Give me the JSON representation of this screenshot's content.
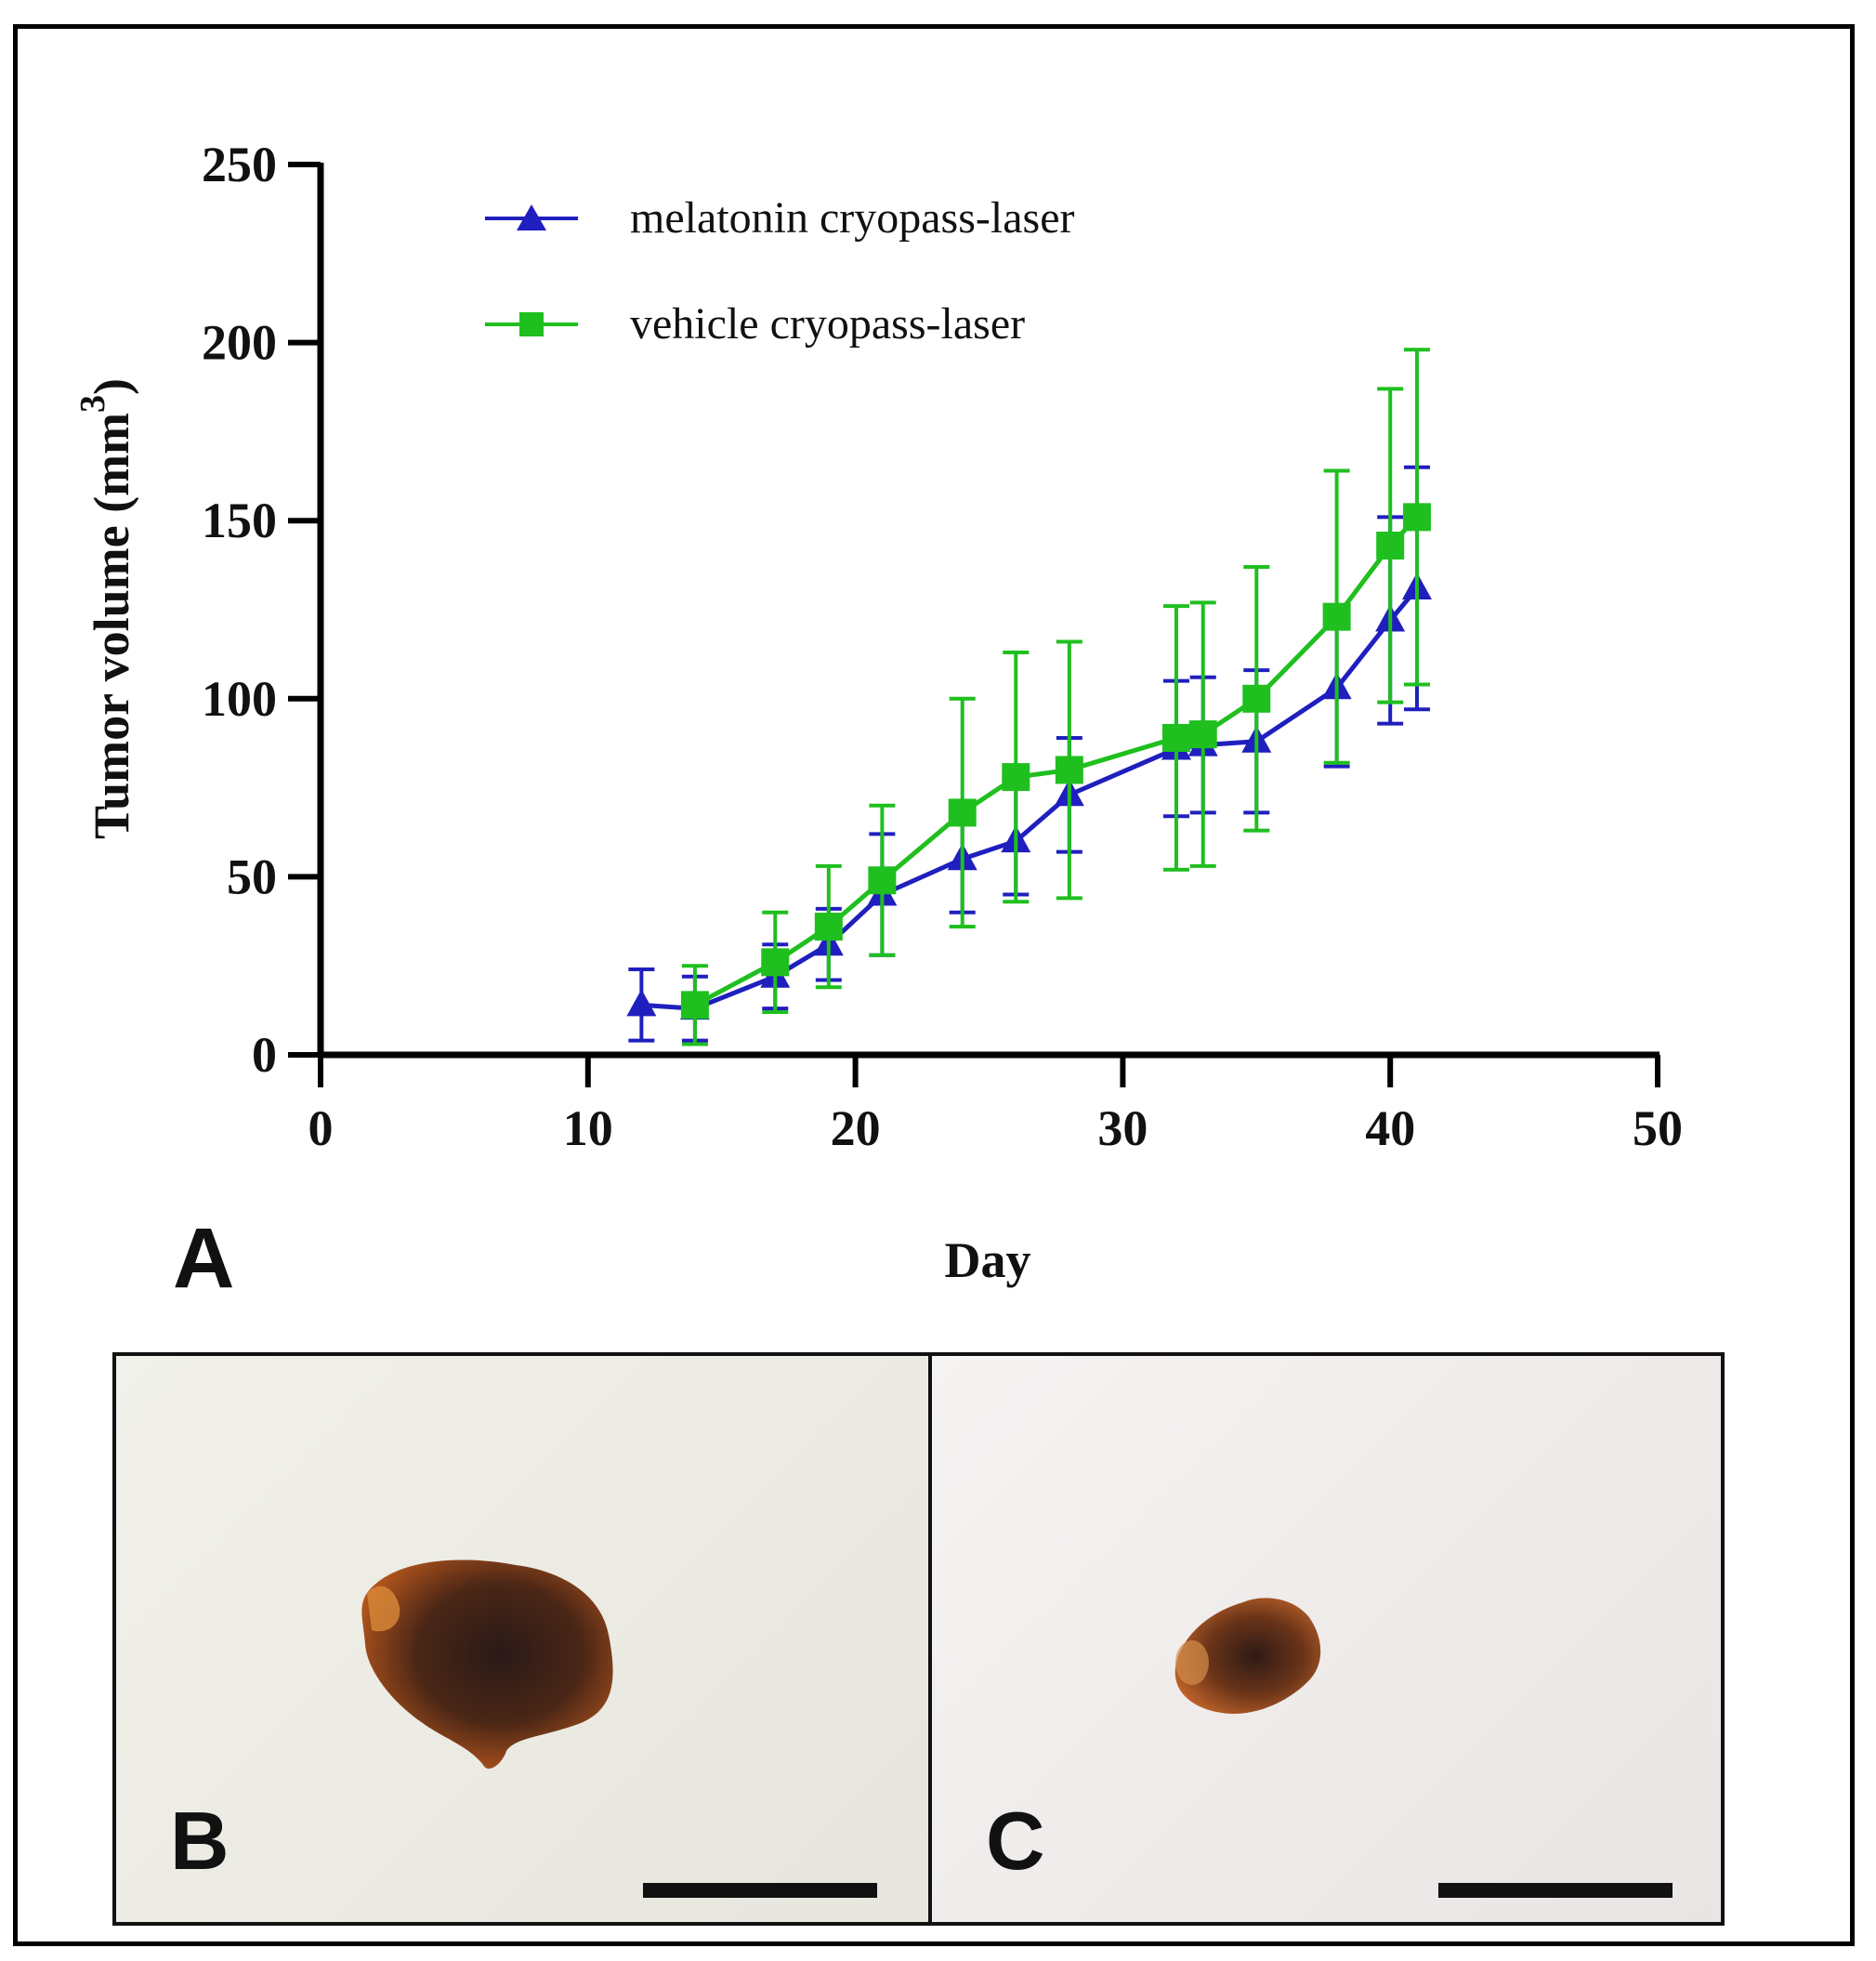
{
  "chart_data": {
    "type": "line",
    "xlabel": "Day",
    "ylabel_main": "Tumor volume (mm",
    "ylabel_sup": "3",
    "ylabel_close": ")",
    "xlim": [
      0,
      50
    ],
    "ylim": [
      0,
      250
    ],
    "xticks": [
      0,
      10,
      20,
      30,
      40,
      50
    ],
    "yticks": [
      0,
      50,
      100,
      150,
      200,
      250
    ],
    "legend_position": "top-left",
    "series": [
      {
        "name": "melatonin cryopass-laser",
        "color": "#1f1fbf",
        "marker": "triangle",
        "x": [
          12,
          14,
          17,
          19,
          21,
          24,
          26,
          28,
          32,
          33,
          35,
          38,
          40,
          41
        ],
        "y": [
          14,
          13,
          22,
          31,
          45,
          55,
          60,
          73,
          86,
          87,
          88,
          103,
          122,
          131
        ],
        "err": [
          10,
          9,
          9,
          10,
          17,
          15,
          15,
          16,
          19,
          19,
          20,
          22,
          29,
          34
        ]
      },
      {
        "name": "vehicle cryopass-laser",
        "color": "#1fbf1f",
        "marker": "square",
        "x": [
          14,
          17,
          19,
          21,
          24,
          26,
          28,
          32,
          33,
          35,
          38,
          40,
          41
        ],
        "y": [
          14,
          26,
          36,
          49,
          68,
          78,
          80,
          89,
          90,
          100,
          123,
          143,
          151
        ],
        "err": [
          11,
          14,
          17,
          21,
          32,
          35,
          36,
          37,
          37,
          37,
          41,
          44,
          47
        ]
      }
    ]
  },
  "panels": {
    "a": "A",
    "b": "B",
    "c": "C"
  }
}
